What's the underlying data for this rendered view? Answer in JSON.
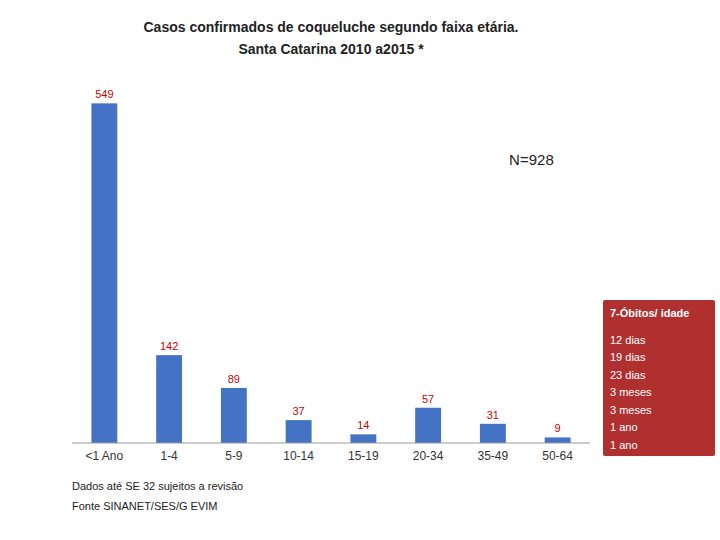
{
  "chart_data": {
    "type": "bar",
    "title": "Casos confirmados de coqueluche segundo faixa etária.",
    "subtitle": "Santa Catarina 2010 a2015 *",
    "categories": [
      "<1 Ano",
      "1-4",
      "5-9",
      "10-14",
      "15-19",
      "20-34",
      "35-49",
      "50-64"
    ],
    "values": [
      549,
      142,
      89,
      37,
      14,
      57,
      31,
      9
    ],
    "color": "#4472C4",
    "ylim": [
      0,
      590
    ],
    "grid": false,
    "data_labels": true,
    "tick_labels": "x",
    "annotations": [
      "N=928",
      "Dados até  SE 32 sujeitos a revisão",
      "Fonte SINANET/SES/G EVIM",
      {
        "title": "7-Óbitos/ idade",
        "items": [
          "12 dias",
          "19 dias",
          "23 dias",
          "3 meses",
          "3 meses",
          "1 ano",
          "1 ano"
        ],
        "color": "#B03030"
      }
    ]
  }
}
